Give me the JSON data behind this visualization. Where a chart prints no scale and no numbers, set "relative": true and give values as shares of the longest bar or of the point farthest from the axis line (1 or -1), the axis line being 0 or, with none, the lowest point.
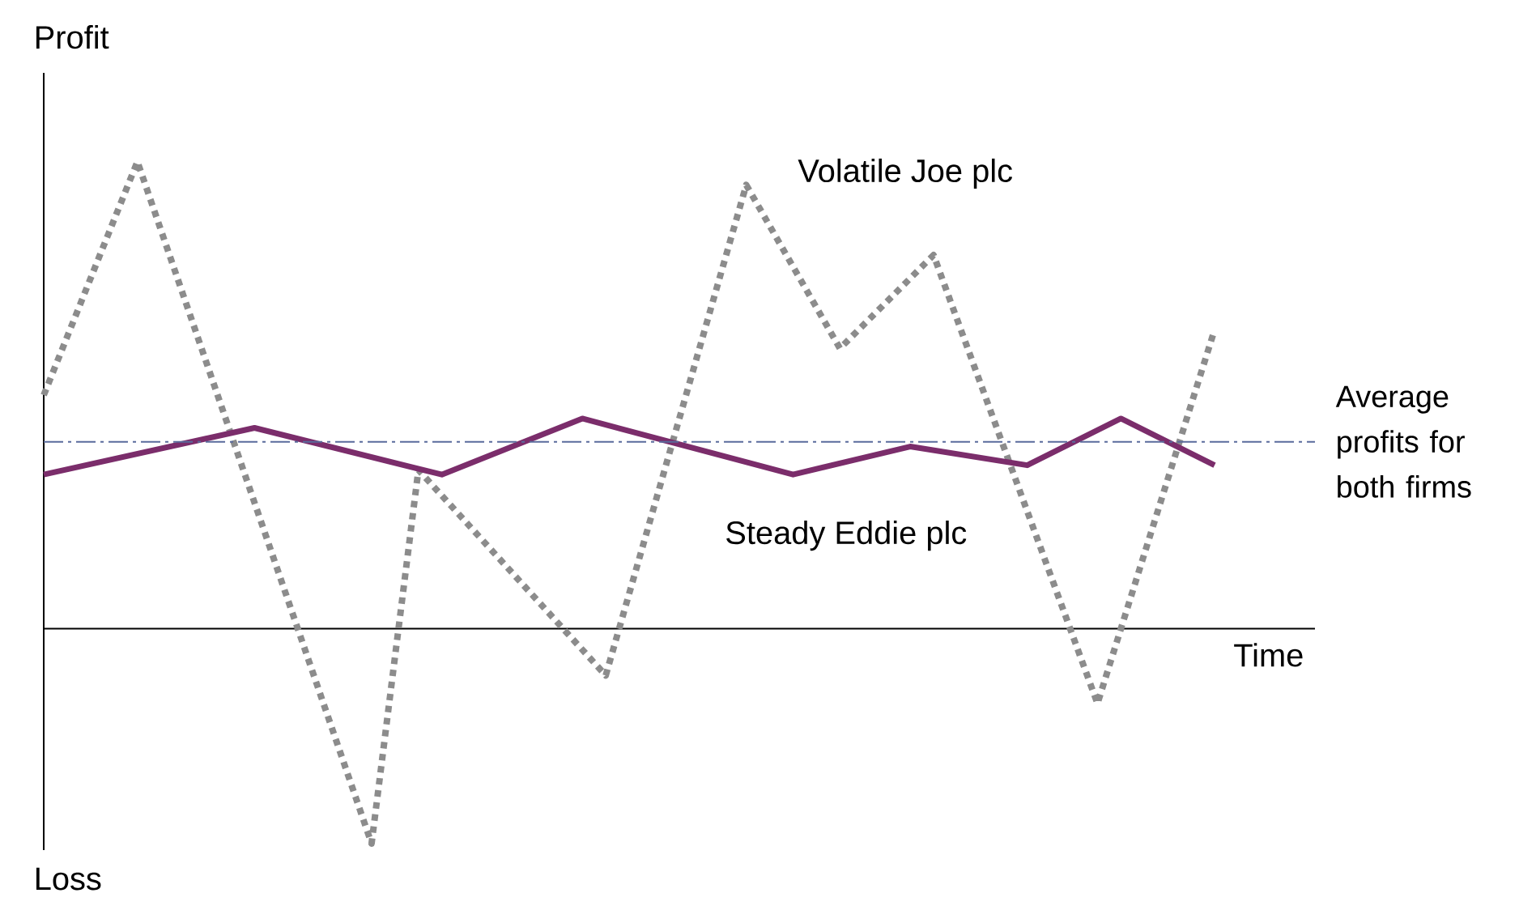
{
  "chart_data": {
    "type": "line",
    "relative": true,
    "ylabel": "Profit",
    "xlabel": "Time",
    "annotations": [
      "Loss"
    ],
    "categories": [
      null,
      null,
      null,
      null,
      null,
      null,
      null,
      null,
      null,
      null,
      null,
      null,
      null,
      null,
      null,
      null,
      null,
      null,
      null,
      null,
      null,
      null,
      null,
      null,
      null,
      null,
      null,
      null,
      null,
      null,
      null,
      null,
      null,
      null,
      null,
      null,
      null,
      null,
      null,
      null,
      null,
      null,
      null,
      null,
      null,
      null,
      null,
      null,
      null,
      null,
      null
    ],
    "series": [
      {
        "name": "Volatile Joe plc",
        "color": "#8c8c8c",
        "line_style": "dotted",
        "values": [
          0.5,
          null,
          null,
          null,
          1,
          null,
          null,
          null,
          null,
          null,
          null,
          null,
          null,
          null,
          -0.46,
          null,
          0.34,
          null,
          null,
          null,
          null,
          null,
          null,
          null,
          -0.1,
          null,
          null,
          null,
          null,
          null,
          0.95,
          null,
          null,
          null,
          0.6,
          null,
          null,
          null,
          0.8,
          null,
          null,
          null,
          null,
          null,
          null,
          -0.16,
          null,
          null,
          null,
          null,
          0.64
        ]
      },
      {
        "name": "Steady Eddie plc",
        "color": "#7b2d6b",
        "line_style": "solid",
        "values": [
          0.33,
          null,
          null,
          null,
          null,
          null,
          null,
          null,
          null,
          0.43,
          null,
          null,
          null,
          null,
          null,
          null,
          null,
          0.33,
          null,
          null,
          null,
          null,
          null,
          0.45,
          null,
          null,
          null,
          null,
          null,
          null,
          null,
          null,
          0.33,
          null,
          null,
          null,
          null,
          0.39,
          null,
          null,
          null,
          null,
          0.35,
          null,
          null,
          null,
          0.45,
          null,
          null,
          null,
          0.35
        ]
      }
    ],
    "ref_lines": [
      {
        "axis": "y",
        "value": 0.4,
        "label": "Average profits for both firms",
        "color": "#5a6b9c",
        "line_style": "dashdot"
      }
    ]
  }
}
